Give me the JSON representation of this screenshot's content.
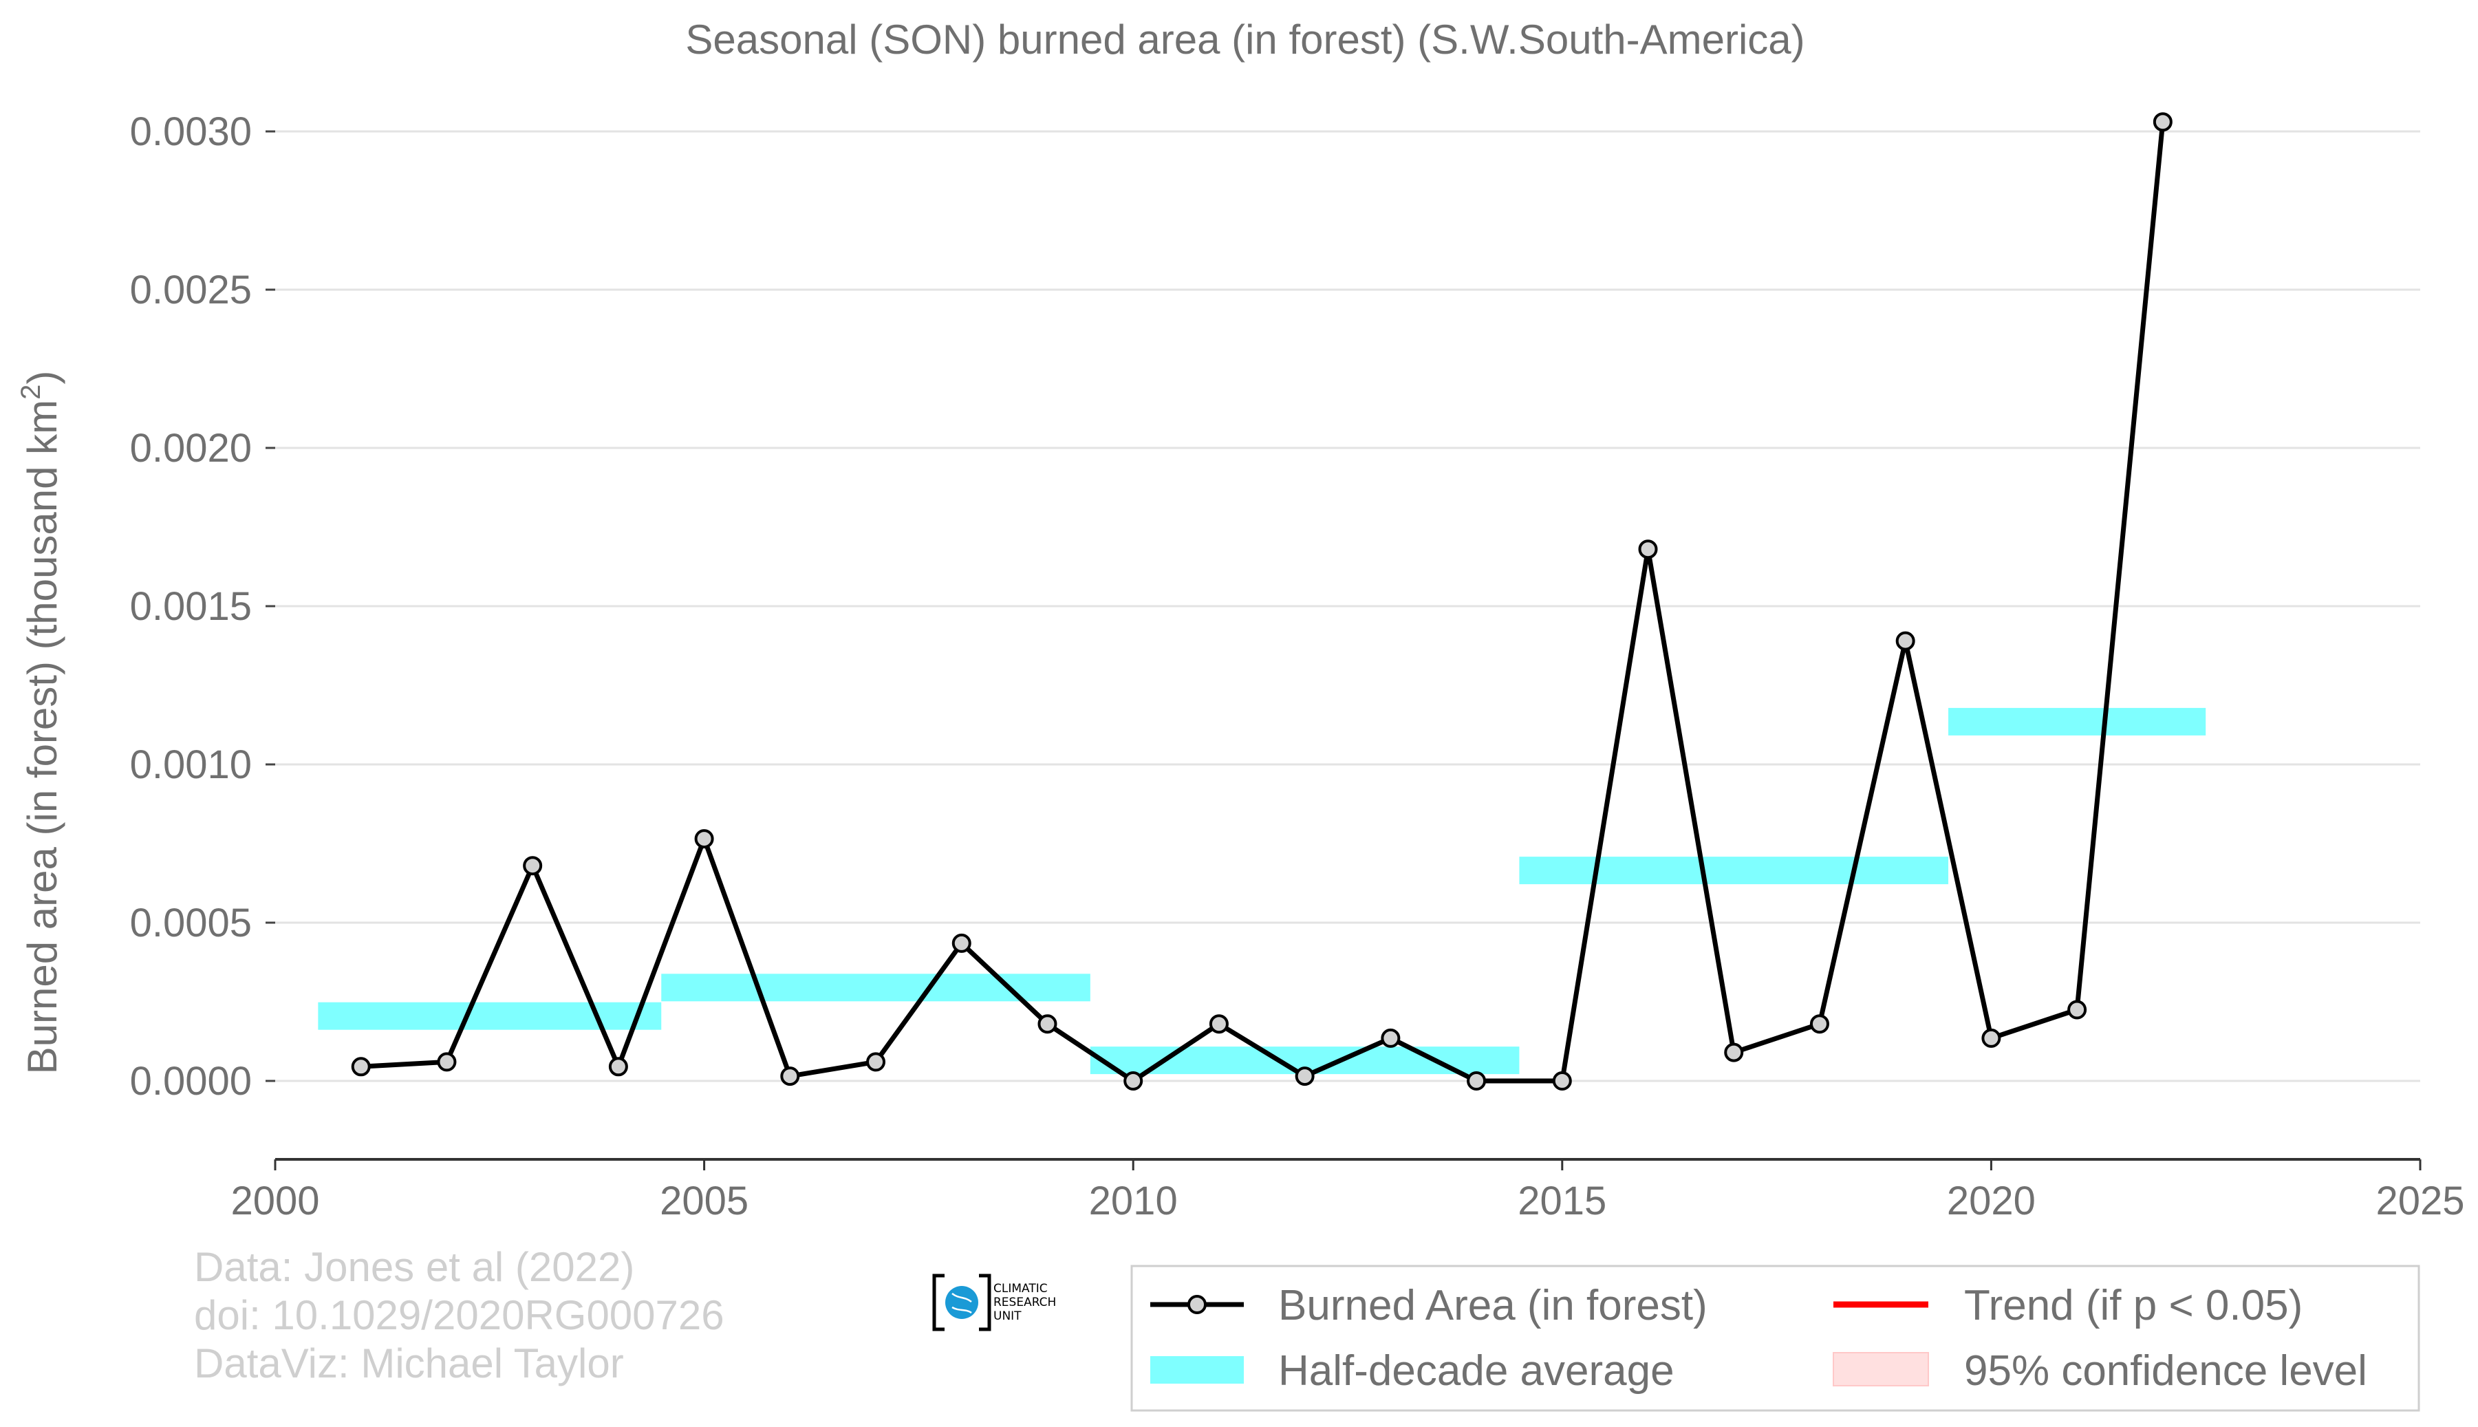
{
  "chart_data": {
    "type": "line",
    "title": "Seasonal (SON) burned area (in forest) (S.W.South-America)",
    "ylabel": "Burned area (in forest) (thousand km",
    "ylabel_sup": "2",
    "ylabel_end": ")",
    "xlim": [
      2000,
      2025
    ],
    "ylim": [
      -0.00015,
      0.0031
    ],
    "x_ticks": [
      2000,
      2005,
      2010,
      2015,
      2020,
      2025
    ],
    "x_tick_labels": [
      "2000",
      "2005",
      "2010",
      "2015",
      "2020",
      "2025"
    ],
    "y_ticks": [
      0.0,
      0.0005,
      0.001,
      0.0015,
      0.002,
      0.0025,
      0.003
    ],
    "y_tick_labels": [
      "0.0000",
      "0.0005",
      "0.0010",
      "0.0015",
      "0.0020",
      "0.0025",
      "0.0030"
    ],
    "grid": true,
    "series": [
      {
        "name": "Burned Area (in forest)",
        "color": "#000000",
        "marker_fill": "#d3d3d3",
        "x": [
          2001,
          2002,
          2003,
          2004,
          2005,
          2006,
          2007,
          2008,
          2009,
          2010,
          2011,
          2012,
          2013,
          2014,
          2015,
          2016,
          2017,
          2018,
          2019,
          2020,
          2021,
          2022
        ],
        "y": [
          4.5e-05,
          6e-05,
          0.00068,
          4.5e-05,
          0.000765,
          1.5e-05,
          6e-05,
          0.000435,
          0.00018,
          0.0,
          0.00018,
          1.5e-05,
          0.000135,
          0.0,
          0.0,
          0.00168,
          9e-05,
          0.00018,
          0.00139,
          0.000135,
          0.000225,
          0.00303
        ]
      }
    ],
    "half_decade_average": {
      "name": "Half-decade average",
      "color": "#7fffff",
      "segments": [
        {
          "x_start": 2000.5,
          "x_end": 2004.5,
          "value": 0.000205
        },
        {
          "x_start": 2004.5,
          "x_end": 2009.5,
          "value": 0.000295
        },
        {
          "x_start": 2009.5,
          "x_end": 2014.5,
          "value": 6.5e-05
        },
        {
          "x_start": 2014.5,
          "x_end": 2019.5,
          "value": 0.000665
        },
        {
          "x_start": 2019.5,
          "x_end": 2022.5,
          "value": 0.001135
        }
      ]
    },
    "legend": {
      "placement": "bottom-right",
      "entries": [
        {
          "label": "Burned Area (in forest)",
          "kind": "line-marker",
          "color": "#000000"
        },
        {
          "label": "Trend (if p < 0.05)",
          "kind": "line",
          "color": "#ff0000"
        },
        {
          "label": "Half-decade average",
          "kind": "band",
          "color": "#7fffff"
        },
        {
          "label": "95% confidence level",
          "kind": "band",
          "color": "#ffe0e0"
        }
      ]
    }
  },
  "credits": {
    "line1": "Data: Jones et al (2022)",
    "line2": "doi: 10.1029/2020RG000726",
    "line3": "DataViz: Michael Taylor"
  },
  "logo": {
    "line1": "CLIMATIC",
    "line2": "RESEARCH",
    "line3": "UNIT",
    "color": "#1a9ad6"
  }
}
